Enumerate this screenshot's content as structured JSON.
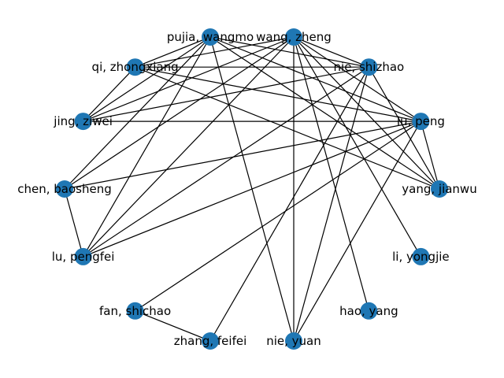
{
  "graph": {
    "node_color": "#1f77b4",
    "edge_color": "#000000",
    "nodes": [
      {
        "id": "wang_zheng",
        "label": "wang, zheng"
      },
      {
        "id": "nie_shizhao",
        "label": "nie, shizhao"
      },
      {
        "id": "lu_peng",
        "label": "lu, peng"
      },
      {
        "id": "yang_jianwu",
        "label": "yang, jianwu"
      },
      {
        "id": "li_yongjie",
        "label": "li, yongjie"
      },
      {
        "id": "hao_yang",
        "label": "hao, yang"
      },
      {
        "id": "nie_yuan",
        "label": "nie, yuan"
      },
      {
        "id": "zhang_feifei",
        "label": "zhang, feifei"
      },
      {
        "id": "fan_shichao",
        "label": "fan, shichao"
      },
      {
        "id": "lu_pengfei",
        "label": "lu, pengfei"
      },
      {
        "id": "chen_baosheng",
        "label": "chen, baosheng"
      },
      {
        "id": "jing_ziwei",
        "label": "jing, ziwei"
      },
      {
        "id": "qi_zhongxiang",
        "label": "qi, zhongxiang"
      },
      {
        "id": "pujia_wangmo",
        "label": "pujia, wangmo"
      }
    ],
    "edges": [
      [
        "wang_zheng",
        "nie_shizhao"
      ],
      [
        "wang_zheng",
        "lu_peng"
      ],
      [
        "wang_zheng",
        "yang_jianwu"
      ],
      [
        "wang_zheng",
        "li_yongjie"
      ],
      [
        "wang_zheng",
        "hao_yang"
      ],
      [
        "wang_zheng",
        "nie_yuan"
      ],
      [
        "wang_zheng",
        "lu_pengfei"
      ],
      [
        "wang_zheng",
        "chen_baosheng"
      ],
      [
        "wang_zheng",
        "jing_ziwei"
      ],
      [
        "wang_zheng",
        "qi_zhongxiang"
      ],
      [
        "pujia_wangmo",
        "nie_shizhao"
      ],
      [
        "pujia_wangmo",
        "lu_peng"
      ],
      [
        "pujia_wangmo",
        "yang_jianwu"
      ],
      [
        "pujia_wangmo",
        "nie_yuan"
      ],
      [
        "pujia_wangmo",
        "lu_pengfei"
      ],
      [
        "pujia_wangmo",
        "chen_baosheng"
      ],
      [
        "pujia_wangmo",
        "jing_ziwei"
      ],
      [
        "pujia_wangmo",
        "qi_zhongxiang"
      ],
      [
        "qi_zhongxiang",
        "nie_shizhao"
      ],
      [
        "qi_zhongxiang",
        "lu_peng"
      ],
      [
        "qi_zhongxiang",
        "yang_jianwu"
      ],
      [
        "qi_zhongxiang",
        "jing_ziwei"
      ],
      [
        "nie_shizhao",
        "jing_ziwei"
      ],
      [
        "nie_shizhao",
        "yang_jianwu"
      ],
      [
        "nie_shizhao",
        "nie_yuan"
      ],
      [
        "nie_shizhao",
        "lu_pengfei"
      ],
      [
        "jing_ziwei",
        "lu_peng"
      ],
      [
        "lu_peng",
        "yang_jianwu"
      ],
      [
        "lu_peng",
        "chen_baosheng"
      ],
      [
        "lu_peng",
        "lu_pengfei"
      ],
      [
        "lu_peng",
        "nie_yuan"
      ],
      [
        "lu_peng",
        "fan_shichao"
      ],
      [
        "chen_baosheng",
        "lu_pengfei"
      ],
      [
        "fan_shichao",
        "zhang_feifei"
      ],
      [
        "nie_shizhao",
        "zhang_feifei"
      ]
    ]
  }
}
